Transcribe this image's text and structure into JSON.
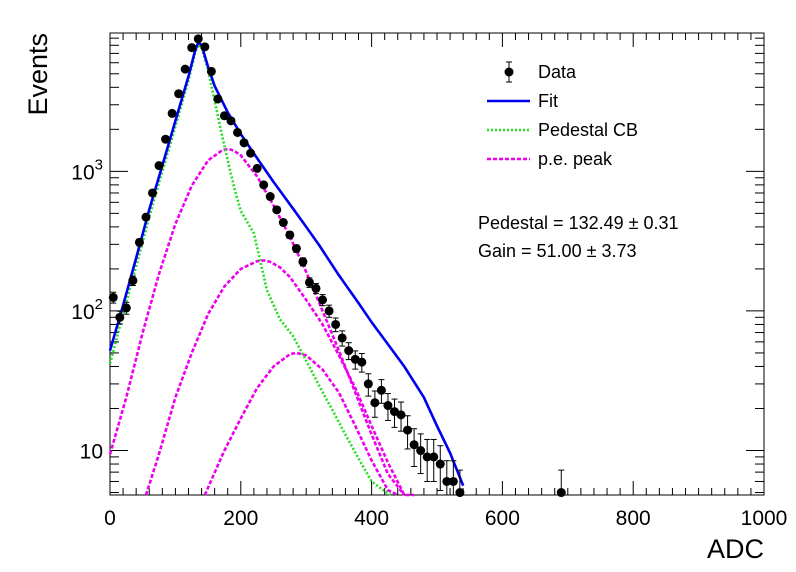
{
  "chart_data": {
    "type": "scatter",
    "title": "",
    "xlabel": "ADC",
    "ylabel": "Events",
    "xlim": [
      0,
      1000
    ],
    "ylim": [
      4.8,
      9800
    ],
    "y_scale": "log",
    "grid": false,
    "legend_position": "top-right",
    "x_ticks": [
      {
        "value": 0,
        "label": "0"
      },
      {
        "value": 200,
        "label": "200"
      },
      {
        "value": 400,
        "label": "400"
      },
      {
        "value": 600,
        "label": "600"
      },
      {
        "value": 800,
        "label": "800"
      },
      {
        "value": 1000,
        "label": "1000"
      }
    ],
    "y_ticks": [
      {
        "value": 10,
        "base": "10",
        "exp": ""
      },
      {
        "value": 100,
        "base": "10",
        "exp": "2"
      },
      {
        "value": 1000,
        "base": "10",
        "exp": "3"
      }
    ],
    "legend": [
      {
        "label": "Data",
        "style": "marker",
        "color": "#000000"
      },
      {
        "label": "Fit",
        "style": "solid",
        "color": "#0000ee"
      },
      {
        "label": "Pedestal CB",
        "style": "dotted",
        "color": "#22dd22"
      },
      {
        "label": "p.e. peak",
        "style": "dashed",
        "color": "#ee00ee"
      }
    ],
    "annotations": [
      {
        "text": "Pedestal = 132.49 ± 0.31"
      },
      {
        "text": "Gain = 51.00 ± 3.73"
      }
    ],
    "series": [
      {
        "name": "Data",
        "kind": "points",
        "color": "#000000",
        "x": [
          5,
          15,
          25,
          35,
          45,
          55,
          65,
          75,
          85,
          95,
          105,
          115,
          125,
          135,
          145,
          155,
          165,
          175,
          185,
          195,
          205,
          215,
          225,
          235,
          245,
          255,
          265,
          275,
          285,
          295,
          305,
          315,
          325,
          335,
          345,
          355,
          365,
          375,
          385,
          395,
          405,
          415,
          425,
          435,
          445,
          455,
          465,
          475,
          485,
          495,
          505,
          515,
          525,
          535,
          690
        ],
        "y": [
          125,
          90,
          105,
          165,
          310,
          470,
          700,
          1100,
          1700,
          2600,
          3600,
          5400,
          7700,
          8900,
          7800,
          5200,
          3300,
          2500,
          2300,
          1900,
          1600,
          1350,
          1050,
          800,
          660,
          530,
          430,
          350,
          280,
          225,
          160,
          145,
          120,
          100,
          80,
          64,
          52,
          45,
          43,
          30,
          22,
          27,
          21,
          19,
          18,
          14,
          11,
          10,
          9,
          9,
          8,
          6,
          6,
          5,
          5
        ]
      },
      {
        "name": "Fit",
        "kind": "curve",
        "color": "#0000ee",
        "x": [
          0,
          20,
          40,
          60,
          80,
          100,
          120,
          130,
          135,
          140,
          150,
          160,
          180,
          200,
          220,
          250,
          280,
          300,
          320,
          350,
          380,
          400,
          420,
          450,
          480,
          500,
          520,
          540
        ],
        "y": [
          52,
          110,
          240,
          530,
          1100,
          2300,
          4800,
          7300,
          8400,
          8000,
          5600,
          4100,
          2650,
          1850,
          1340,
          840,
          540,
          400,
          295,
          180,
          114,
          83,
          62,
          40,
          24,
          15,
          9.6,
          5.6
        ]
      },
      {
        "name": "Pedestal CB",
        "kind": "curve",
        "color": "#22dd22",
        "x": [
          0,
          20,
          40,
          60,
          80,
          100,
          120,
          130,
          135,
          140,
          150,
          160,
          170,
          180,
          190,
          200,
          220,
          240,
          260,
          280,
          300,
          320,
          340,
          360,
          380,
          400,
          420,
          430
        ],
        "y": [
          42,
          95,
          210,
          470,
          1000,
          2100,
          4500,
          7000,
          8100,
          7700,
          5300,
          3200,
          1920,
          1200,
          760,
          520,
          360,
          140,
          87,
          66,
          44,
          29,
          19.5,
          13,
          8.8,
          6,
          5.1,
          4.8
        ]
      },
      {
        "name": "p.e. peak 1",
        "kind": "curve",
        "color": "#ee00ee",
        "x": [
          0,
          25,
          50,
          75,
          100,
          125,
          150,
          170,
          180,
          185,
          190,
          200,
          225,
          250,
          275,
          300,
          325,
          350,
          375,
          400,
          425,
          450
        ],
        "y": [
          9.4,
          24,
          70,
          185,
          420,
          790,
          1200,
          1400,
          1450,
          1430,
          1400,
          1300,
          920,
          570,
          340,
          190,
          100,
          52,
          26,
          13,
          6.8,
          4.8
        ]
      },
      {
        "name": "p.e. peak 2",
        "kind": "curve",
        "color": "#ee00ee",
        "x": [
          55,
          75,
          100,
          125,
          150,
          175,
          200,
          225,
          235,
          245,
          260,
          275,
          300,
          325,
          350,
          375,
          400,
          425,
          450,
          465
        ],
        "y": [
          4.8,
          9.5,
          24,
          50,
          95,
          150,
          200,
          227,
          230,
          225,
          205,
          175,
          120,
          80,
          48,
          28,
          15,
          8.2,
          4.8,
          4.8
        ]
      },
      {
        "name": "p.e. peak 3",
        "kind": "curve",
        "color": "#ee00ee",
        "x": [
          145,
          175,
          200,
          225,
          250,
          275,
          285,
          300,
          325,
          350,
          375,
          400,
          425,
          440
        ],
        "y": [
          4.8,
          10,
          17,
          28,
          40,
          49,
          50,
          48,
          38,
          26,
          15,
          8.5,
          5.2,
          4.8
        ]
      }
    ]
  }
}
